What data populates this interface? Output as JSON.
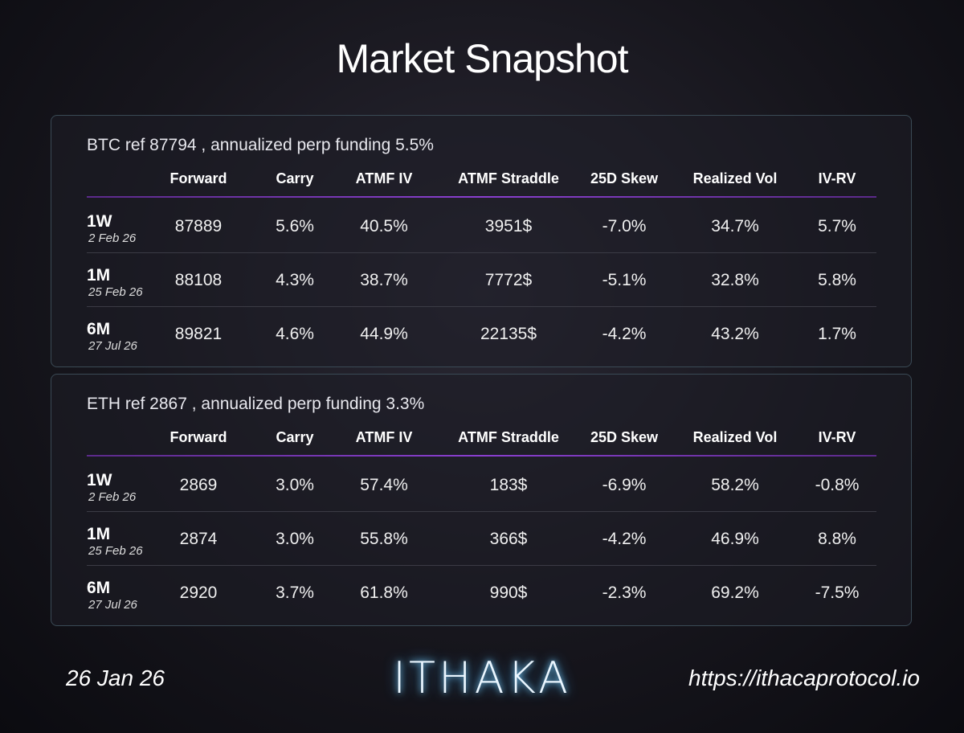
{
  "title": "Market Snapshot",
  "tables": [
    {
      "heading": "BTC ref 87794 , annualized perp funding 5.5%",
      "columns": [
        "Forward",
        "Carry",
        "ATMF IV",
        "ATMF Straddle",
        "25D Skew",
        "Realized Vol",
        "IV-RV"
      ],
      "rows": [
        {
          "tenor": "1W",
          "date": "2 Feb 26",
          "cells": [
            "87889",
            "5.6%",
            "40.5%",
            "3951$",
            "-7.0%",
            "34.7%",
            "5.7%"
          ]
        },
        {
          "tenor": "1M",
          "date": "25 Feb 26",
          "cells": [
            "88108",
            "4.3%",
            "38.7%",
            "7772$",
            "-5.1%",
            "32.8%",
            "5.8%"
          ]
        },
        {
          "tenor": "6M",
          "date": "27 Jul 26",
          "cells": [
            "89821",
            "4.6%",
            "44.9%",
            "22135$",
            "-4.2%",
            "43.2%",
            "1.7%"
          ]
        }
      ]
    },
    {
      "heading": "ETH ref 2867 , annualized perp funding 3.3%",
      "columns": [
        "Forward",
        "Carry",
        "ATMF IV",
        "ATMF Straddle",
        "25D Skew",
        "Realized Vol",
        "IV-RV"
      ],
      "rows": [
        {
          "tenor": "1W",
          "date": "2 Feb 26",
          "cells": [
            "2869",
            "3.0%",
            "57.4%",
            "183$",
            "-6.9%",
            "58.2%",
            "-0.8%"
          ]
        },
        {
          "tenor": "1M",
          "date": "25 Feb 26",
          "cells": [
            "2874",
            "3.0%",
            "55.8%",
            "366$",
            "-4.2%",
            "46.9%",
            "8.8%"
          ]
        },
        {
          "tenor": "6M",
          "date": "27 Jul 26",
          "cells": [
            "2920",
            "3.7%",
            "61.8%",
            "990$",
            "-2.3%",
            "69.2%",
            "-7.5%"
          ]
        }
      ]
    }
  ],
  "footer": {
    "date": "26 Jan 26",
    "logo": "ITHAKA",
    "url": "https://ithacaprotocol.io"
  }
}
